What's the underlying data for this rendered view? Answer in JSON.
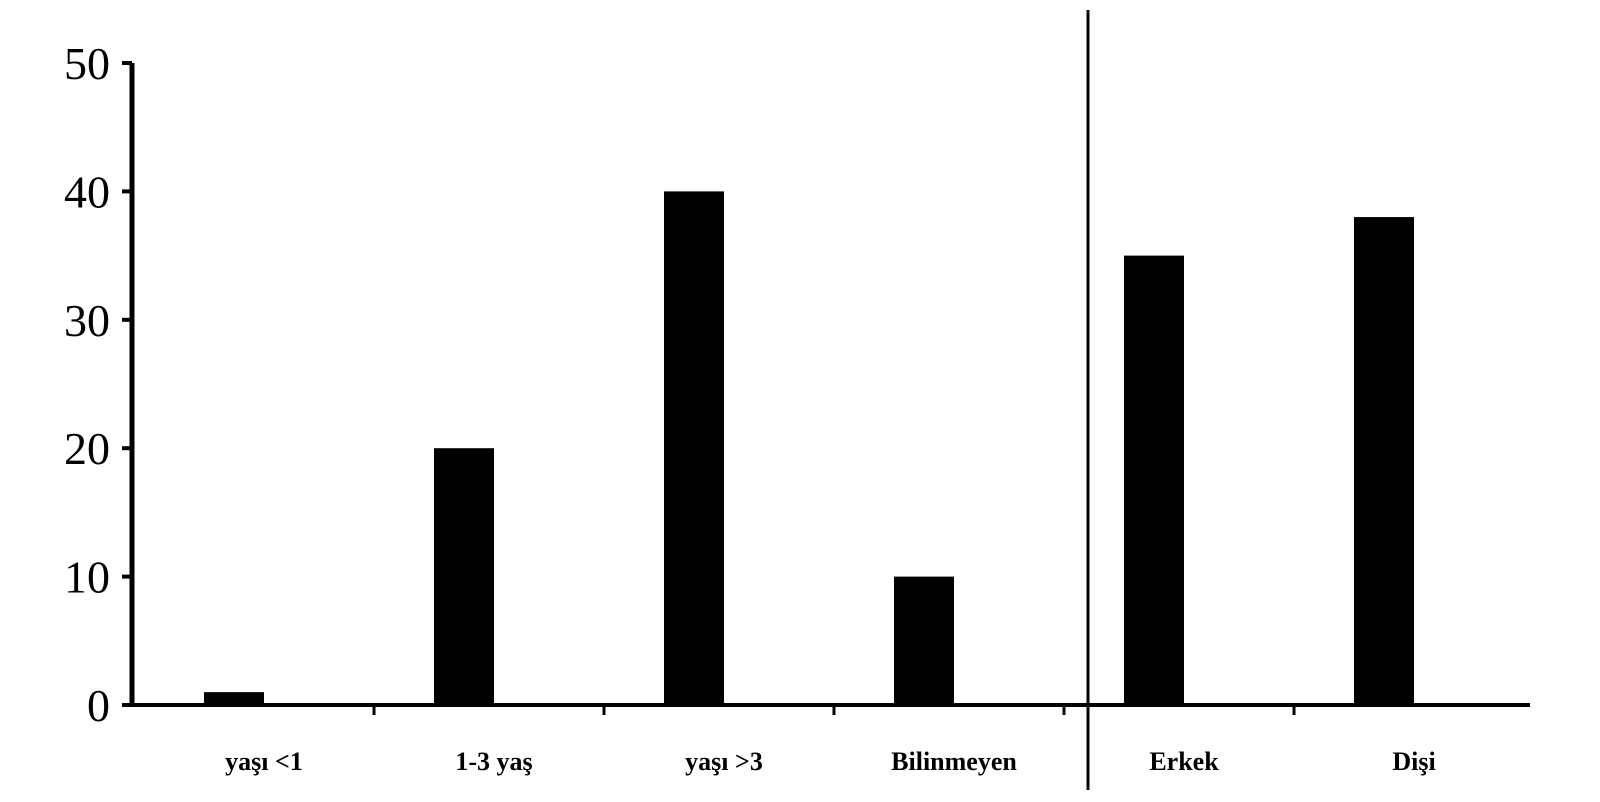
{
  "chart_data": {
    "type": "bar",
    "categories": [
      "yaşı <1",
      "1-3 yaş",
      "yaşı >3",
      "Bilinmeyen",
      "Erkek",
      "Dişi"
    ],
    "values": [
      1,
      20,
      40,
      10,
      35,
      38
    ],
    "yticks": [
      "0",
      "10",
      "20",
      "30",
      "40",
      "50"
    ],
    "ylim": [
      0,
      50
    ],
    "title": "",
    "xlabel": "",
    "ylabel": "",
    "grid": false,
    "bar_color": "#000000",
    "axis_color": "#000000",
    "group_divider_after_index": 3
  }
}
